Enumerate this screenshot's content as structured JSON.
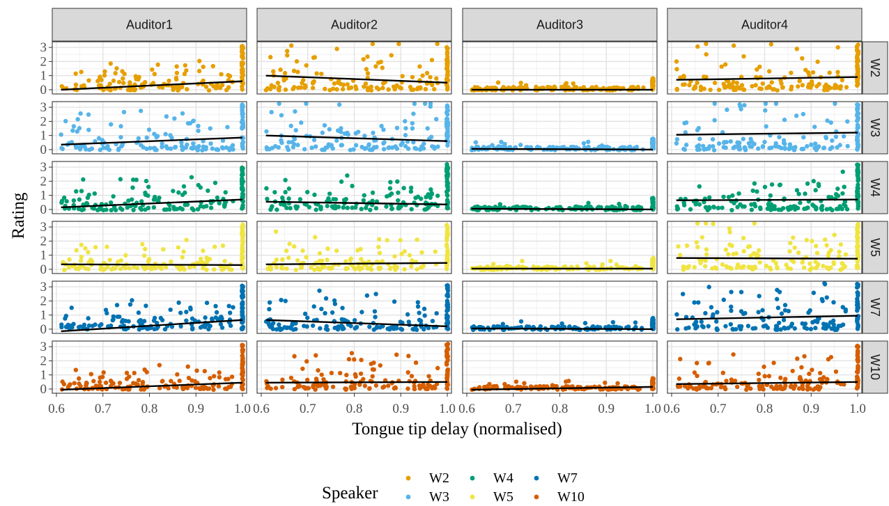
{
  "chart_data": {
    "type": "scatter",
    "facet_columns": [
      "Auditor1",
      "Auditor2",
      "Auditor3",
      "Auditor4"
    ],
    "facet_rows": [
      "W2",
      "W3",
      "W4",
      "W5",
      "W7",
      "W10"
    ],
    "xlabel": "Tongue tip delay (normalised)",
    "ylabel": "Rating",
    "xlim": [
      0.6,
      1.0
    ],
    "ylim": [
      -0.3,
      3.4
    ],
    "x_ticks": [
      "0.6",
      "0.7",
      "0.8",
      "0.9",
      "1.0"
    ],
    "y_ticks": [
      "0",
      "1",
      "2",
      "3"
    ],
    "grid": true,
    "legend": {
      "title": "Speaker",
      "position": "bottom",
      "entries": [
        {
          "name": "W2",
          "color": "#E69F00"
        },
        {
          "name": "W3",
          "color": "#56B4E9"
        },
        {
          "name": "W4",
          "color": "#009E73"
        },
        {
          "name": "W5",
          "color": "#F0E442"
        },
        {
          "name": "W7",
          "color": "#0072B2"
        },
        {
          "name": "W10",
          "color": "#D55E00"
        }
      ]
    },
    "trend_lines": {
      "W2": {
        "Auditor1": [
          0.0,
          0.6
        ],
        "Auditor2": [
          1.0,
          0.5
        ],
        "Auditor3": [
          0.0,
          0.0
        ],
        "Auditor4": [
          0.7,
          0.9
        ]
      },
      "W3": {
        "Auditor1": [
          0.35,
          0.85
        ],
        "Auditor2": [
          1.0,
          0.6
        ],
        "Auditor3": [
          0.05,
          0.0
        ],
        "Auditor4": [
          1.05,
          1.2
        ]
      },
      "W4": {
        "Auditor1": [
          0.15,
          0.7
        ],
        "Auditor2": [
          0.55,
          0.35
        ],
        "Auditor3": [
          0.05,
          0.0
        ],
        "Auditor4": [
          0.65,
          0.7
        ]
      },
      "W5": {
        "Auditor1": [
          0.35,
          0.3
        ],
        "Auditor2": [
          0.35,
          0.45
        ],
        "Auditor3": [
          0.05,
          0.05
        ],
        "Auditor4": [
          0.8,
          0.75
        ]
      },
      "W7": {
        "Auditor1": [
          -0.15,
          0.65
        ],
        "Auditor2": [
          0.65,
          0.2
        ],
        "Auditor3": [
          0.05,
          0.0
        ],
        "Auditor4": [
          0.7,
          0.95
        ]
      },
      "W10": {
        "Auditor1": [
          -0.05,
          0.45
        ],
        "Auditor2": [
          0.45,
          0.5
        ],
        "Auditor3": [
          -0.05,
          0.15
        ],
        "Auditor4": [
          0.35,
          0.5
        ]
      }
    },
    "point_summary": {
      "description_points_per_panel": "approx 100-140 jittered points between x 0.6 and 1.0, with a dense vertical cluster at x = 1.0",
      "mean_rating_by_row_col": {
        "W2": [
          0.3,
          0.7,
          0.05,
          0.8
        ],
        "W3": [
          0.5,
          0.8,
          0.05,
          1.1
        ],
        "W4": [
          0.4,
          0.45,
          0.05,
          0.7
        ],
        "W5": [
          0.35,
          0.4,
          0.05,
          0.75
        ],
        "W7": [
          0.3,
          0.45,
          0.02,
          0.85
        ],
        "W10": [
          0.2,
          0.45,
          0.05,
          0.45
        ]
      }
    }
  }
}
